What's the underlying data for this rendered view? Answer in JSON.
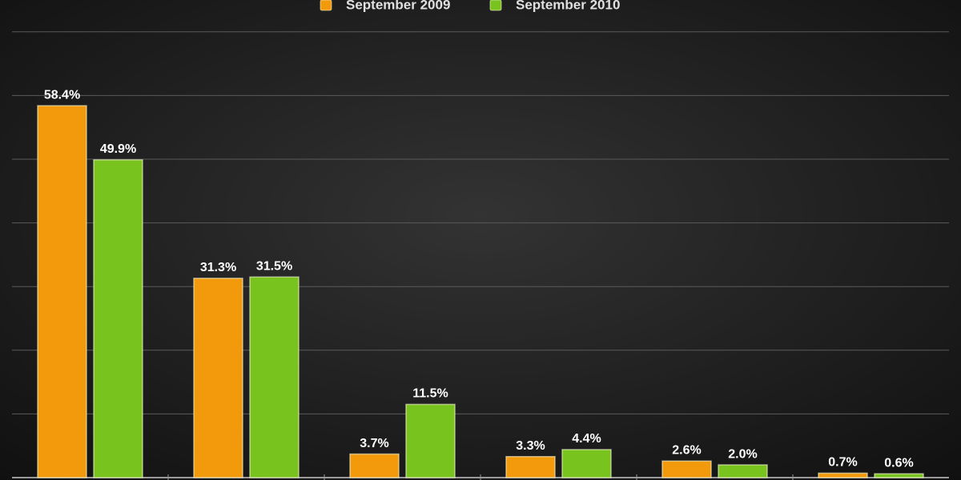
{
  "chart_data": {
    "type": "bar",
    "categories": [
      null,
      null,
      null,
      null,
      null,
      null
    ],
    "series": [
      {
        "name": "September 2009",
        "color": "#f29a0c",
        "values": [
          58.4,
          31.3,
          3.7,
          3.3,
          2.6,
          0.7
        ],
        "value_labels": [
          "58.4%",
          "31.3%",
          "3.7%",
          "3.3%",
          "2.6%",
          "0.7%"
        ]
      },
      {
        "name": "September 2010",
        "color": "#78c31e",
        "values": [
          49.9,
          31.5,
          11.5,
          4.4,
          2.0,
          0.6
        ],
        "value_labels": [
          "49.9%",
          "31.5%",
          "11.5%",
          "4.4%",
          "2.0%",
          "0.6%"
        ]
      }
    ],
    "ylim": [
      0,
      75
    ],
    "yticks": [
      0,
      10,
      20,
      30,
      40,
      50,
      60,
      70
    ],
    "grid": true
  }
}
